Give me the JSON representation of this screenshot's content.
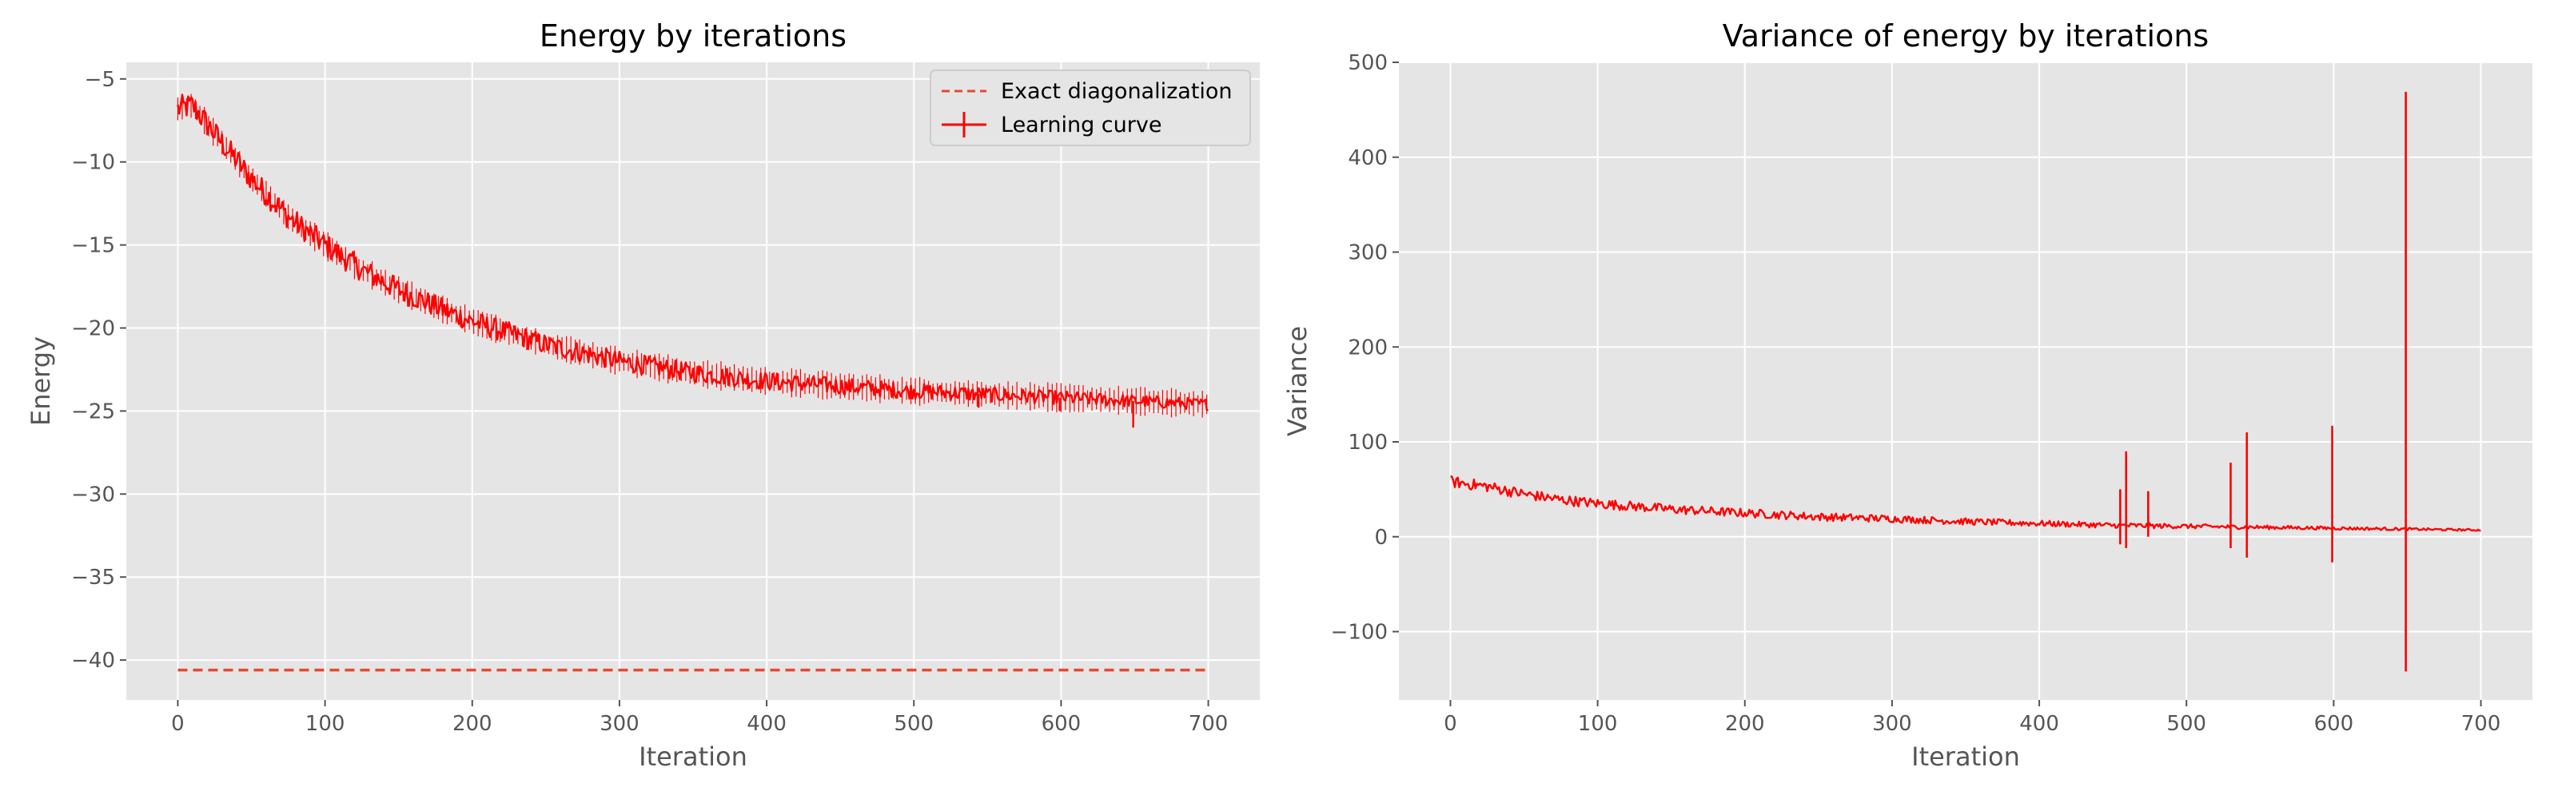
{
  "chart_data": [
    {
      "type": "line",
      "title": "Energy by iterations",
      "xlabel": "Iteration",
      "ylabel": "Energy",
      "xlim": [
        -35,
        735
      ],
      "ylim": [
        -42.4,
        -4.0
      ],
      "xticks": [
        0,
        100,
        200,
        300,
        400,
        500,
        600,
        700
      ],
      "yticks": [
        -5,
        -10,
        -15,
        -20,
        -25,
        -30,
        -35,
        -40
      ],
      "xtick_labels": [
        "0",
        "100",
        "200",
        "300",
        "400",
        "500",
        "600",
        "700"
      ],
      "ytick_labels": [
        "−5",
        "−10",
        "−15",
        "−20",
        "−25",
        "−30",
        "−35",
        "−40"
      ],
      "grid": true,
      "legend_position": "top-right",
      "series": [
        {
          "name": "Exact diagonalization",
          "style": "dashed",
          "color": "#e24a33",
          "x": [
            0,
            700
          ],
          "y": [
            -40.6,
            -40.6
          ]
        },
        {
          "name": "Learning curve",
          "style": "solid",
          "color": "#ff0000",
          "x": [
            0,
            10,
            25,
            50,
            75,
            100,
            125,
            150,
            175,
            200,
            250,
            300,
            350,
            400,
            450,
            500,
            550,
            600,
            650,
            700
          ],
          "y": [
            -6.8,
            -6.6,
            -8.3,
            -11.0,
            -13.3,
            -15.0,
            -16.5,
            -17.7,
            -18.7,
            -19.6,
            -21.0,
            -22.0,
            -22.7,
            -23.2,
            -23.5,
            -23.8,
            -24.0,
            -24.2,
            -24.4,
            -24.6
          ]
        }
      ]
    },
    {
      "type": "line",
      "title": "Variance of energy by iterations",
      "xlabel": "Iteration",
      "ylabel": "Variance",
      "xlim": [
        -35,
        735
      ],
      "ylim": [
        -172,
        500
      ],
      "xticks": [
        0,
        100,
        200,
        300,
        400,
        500,
        600,
        700
      ],
      "yticks": [
        500,
        400,
        300,
        200,
        100,
        0,
        -100
      ],
      "xtick_labels": [
        "0",
        "100",
        "200",
        "300",
        "400",
        "500",
        "600",
        "700"
      ],
      "ytick_labels": [
        "500",
        "400",
        "300",
        "200",
        "100",
        "0",
        "−100"
      ],
      "grid": true,
      "series": [
        {
          "style": "solid",
          "color": "#ff0000",
          "x": [
            0,
            25,
            50,
            75,
            100,
            150,
            200,
            250,
            300,
            350,
            400,
            450,
            500,
            550,
            600,
            650,
            700
          ],
          "y": [
            58,
            53,
            45,
            39,
            35,
            29,
            25,
            21,
            19,
            16,
            14,
            12,
            11,
            10,
            9,
            8,
            7
          ],
          "spikes": [
            {
              "x": 455,
              "high": 50,
              "low": -8
            },
            {
              "x": 459,
              "high": 90,
              "low": -12
            },
            {
              "x": 474,
              "high": 48,
              "low": 0
            },
            {
              "x": 530,
              "high": 78,
              "low": -12
            },
            {
              "x": 541,
              "high": 110,
              "low": -22
            },
            {
              "x": 599,
              "high": 117,
              "low": -27
            },
            {
              "x": 649,
              "high": 469,
              "low": -142
            }
          ]
        }
      ]
    }
  ]
}
